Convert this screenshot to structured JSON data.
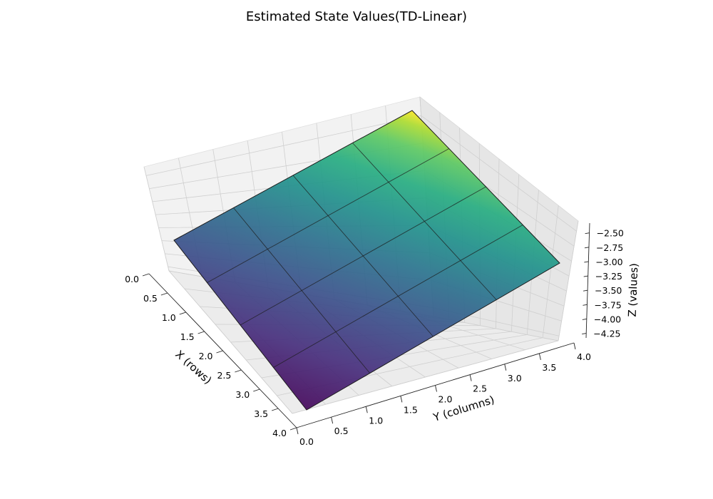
{
  "chart_data": {
    "type": "surface3d",
    "title": "Estimated State Values(TD-Linear)",
    "xlabel": "X (rows)",
    "ylabel": "Y (columns)",
    "zlabel": "Z (values)",
    "x_ticks": [
      "0.0",
      "0.5",
      "1.0",
      "1.5",
      "2.0",
      "2.5",
      "3.0",
      "3.5",
      "4.0"
    ],
    "y_ticks": [
      "0.0",
      "0.5",
      "1.0",
      "1.5",
      "2.0",
      "2.5",
      "3.0",
      "3.5",
      "4.0"
    ],
    "z_ticks": [
      "−4.25",
      "−4.00",
      "−3.75",
      "−3.50",
      "−3.25",
      "−3.00",
      "−2.75",
      "−2.50"
    ],
    "xlim": [
      0,
      4
    ],
    "ylim": [
      0,
      4
    ],
    "zlim": [
      -4.33,
      -2.33
    ],
    "grid": true,
    "colormap": "viridis",
    "surface": {
      "x": [
        0,
        1,
        2,
        3,
        4
      ],
      "y": [
        0,
        1,
        2,
        3,
        4
      ],
      "z": [
        [
          -3.1,
          -2.85,
          -2.6,
          -2.45,
          -2.32
        ],
        [
          -3.4,
          -3.15,
          -2.95,
          -2.75,
          -2.6
        ],
        [
          -3.7,
          -3.45,
          -3.25,
          -3.05,
          -2.9
        ],
        [
          -4.0,
          -3.75,
          -3.55,
          -3.35,
          -3.2
        ],
        [
          -4.3,
          -4.05,
          -3.85,
          -3.65,
          -3.5
        ]
      ]
    }
  }
}
